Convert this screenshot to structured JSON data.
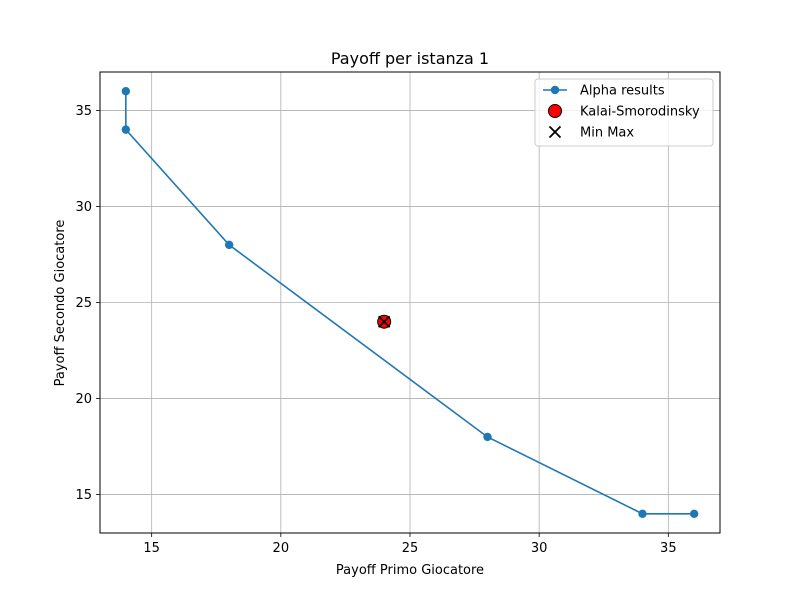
{
  "chart_data": {
    "type": "line",
    "title": "Payoff per istanza 1",
    "xlabel": "Payoff Primo Giocatore",
    "ylabel": "Payoff Secondo Giocatore",
    "xlim": [
      13,
      37
    ],
    "ylim": [
      13,
      37
    ],
    "x_ticks": [
      15,
      20,
      25,
      30,
      35
    ],
    "y_ticks": [
      15,
      20,
      25,
      30,
      35
    ],
    "grid": true,
    "legend_position": "top-right",
    "series": [
      {
        "name": "Alpha results",
        "kind": "line-with-markers",
        "color": "#1f77b4",
        "points": [
          {
            "x": 14,
            "y": 36
          },
          {
            "x": 14,
            "y": 34
          },
          {
            "x": 18,
            "y": 28
          },
          {
            "x": 28,
            "y": 18
          },
          {
            "x": 34,
            "y": 14
          },
          {
            "x": 36,
            "y": 14
          }
        ]
      },
      {
        "name": "Kalai-Smorodinsky",
        "kind": "scatter-circle",
        "color": "#ff0000",
        "edge_color": "#000000",
        "points": [
          {
            "x": 24,
            "y": 24
          }
        ]
      },
      {
        "name": "Min Max",
        "kind": "scatter-x",
        "color": "#000000",
        "points": [
          {
            "x": 24,
            "y": 24
          }
        ]
      }
    ]
  }
}
